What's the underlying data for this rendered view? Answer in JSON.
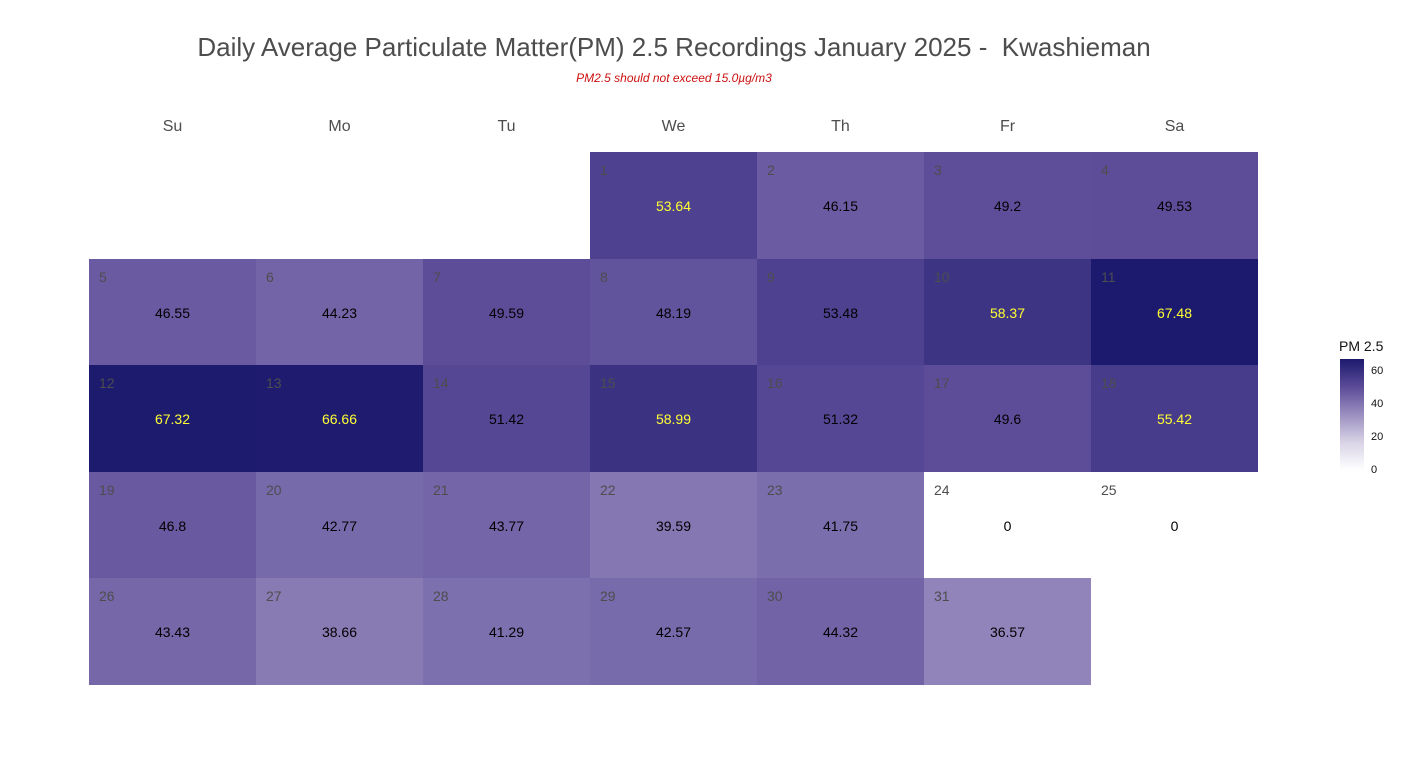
{
  "chart_data": {
    "type": "heatmap",
    "title": "Daily Average Particulate Matter(PM) 2.5 Recordings January 2025 -  Kwashieman",
    "subtitle": "PM2.5 should not exceed 15.0µg/m3",
    "weekdays": [
      "Su",
      "Mo",
      "Tu",
      "We",
      "Th",
      "Fr",
      "Sa"
    ],
    "first_weekday_index": 3,
    "days": [
      {
        "day": 1,
        "value": 53.64
      },
      {
        "day": 2,
        "value": 46.15
      },
      {
        "day": 3,
        "value": 49.2
      },
      {
        "day": 4,
        "value": 49.53
      },
      {
        "day": 5,
        "value": 46.55
      },
      {
        "day": 6,
        "value": 44.23
      },
      {
        "day": 7,
        "value": 49.59
      },
      {
        "day": 8,
        "value": 48.19
      },
      {
        "day": 9,
        "value": 53.48
      },
      {
        "day": 10,
        "value": 58.37
      },
      {
        "day": 11,
        "value": 67.48
      },
      {
        "day": 12,
        "value": 67.32
      },
      {
        "day": 13,
        "value": 66.66
      },
      {
        "day": 14,
        "value": 51.42
      },
      {
        "day": 15,
        "value": 58.99
      },
      {
        "day": 16,
        "value": 51.32
      },
      {
        "day": 17,
        "value": 49.6
      },
      {
        "day": 18,
        "value": 55.42
      },
      {
        "day": 19,
        "value": 46.8
      },
      {
        "day": 20,
        "value": 42.77
      },
      {
        "day": 21,
        "value": 43.77
      },
      {
        "day": 22,
        "value": 39.59
      },
      {
        "day": 23,
        "value": 41.75
      },
      {
        "day": 24,
        "value": 0
      },
      {
        "day": 25,
        "value": 0
      },
      {
        "day": 26,
        "value": 43.43
      },
      {
        "day": 27,
        "value": 38.66
      },
      {
        "day": 28,
        "value": 41.29
      },
      {
        "day": 29,
        "value": 42.57
      },
      {
        "day": 30,
        "value": 44.32
      },
      {
        "day": 31,
        "value": 36.57
      }
    ],
    "legend": {
      "title": "PM 2.5",
      "ticks": [
        0,
        20,
        40,
        60
      ],
      "range": [
        0,
        67.48
      ],
      "low_color": "#ffffff",
      "high_color": "#1c1a6e"
    },
    "label_colors": {
      "high": "#ffff33",
      "normal": "#000000"
    },
    "label_highlight_threshold": 53.5
  }
}
